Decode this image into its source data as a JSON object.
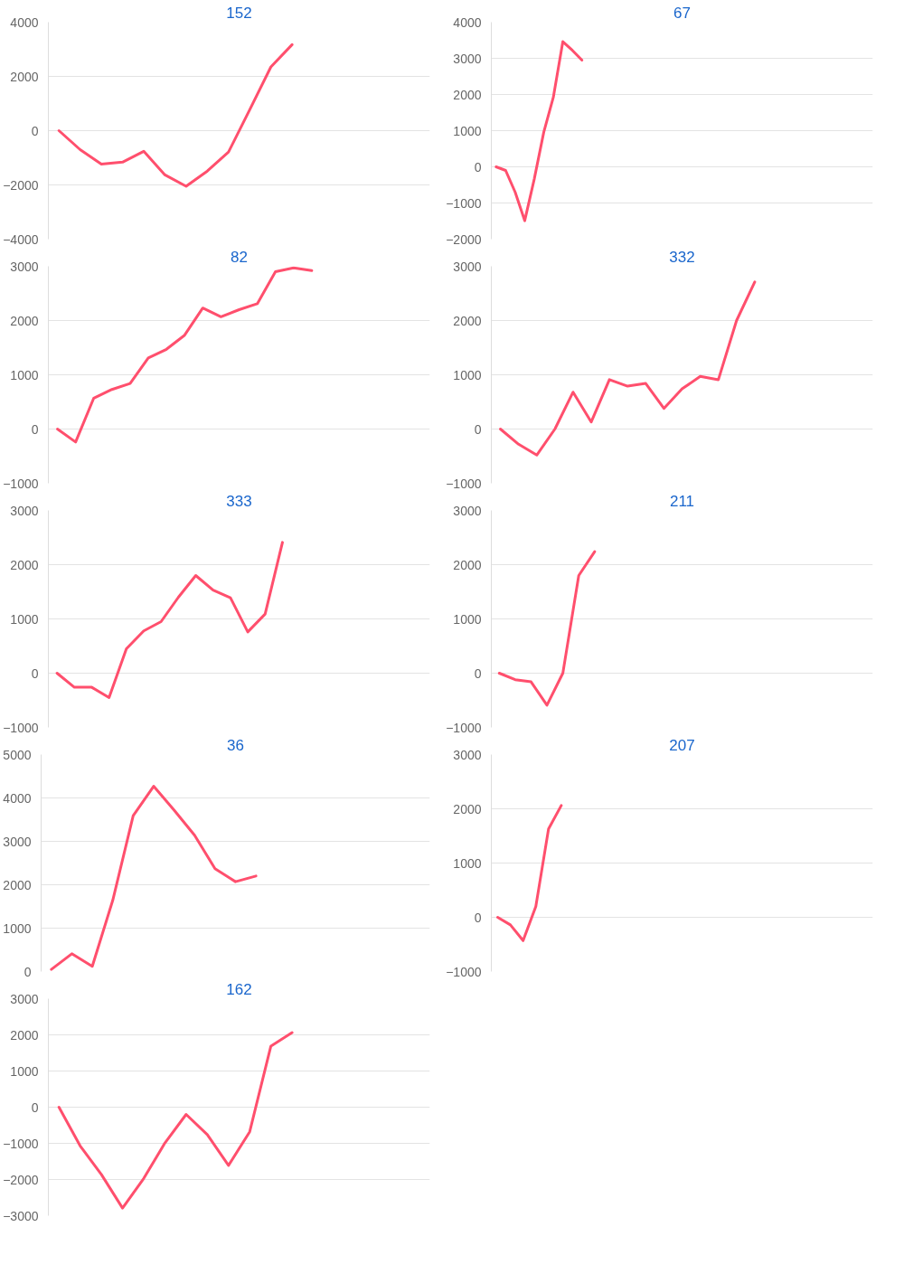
{
  "chart_data": [
    {
      "type": "line",
      "title": "152",
      "categories": [
        null,
        null,
        null,
        null,
        null,
        null,
        null,
        null,
        null,
        null,
        null,
        null,
        null,
        null,
        null,
        null,
        null,
        null
      ],
      "series": [
        {
          "color": "#ff4f6d",
          "values": [
            0,
            -700,
            -1230,
            -1160,
            -760,
            -1630,
            -2050,
            -1490,
            -790,
            770,
            2350,
            3170,
            null,
            null,
            null,
            null,
            null,
            null
          ]
        }
      ],
      "ylim": [
        -4000,
        4000
      ],
      "yticks": [
        -4000,
        -2000,
        0,
        2000,
        4000
      ],
      "grid": "y",
      "tick_labels": "y"
    },
    {
      "type": "line",
      "title": "67",
      "categories": [
        null,
        null,
        null,
        null,
        null,
        null,
        null,
        null,
        null,
        null,
        null,
        null,
        null,
        null,
        null,
        null,
        null,
        null,
        null,
        null,
        null,
        null,
        null,
        null,
        null,
        null,
        null,
        null,
        null,
        null,
        null,
        null,
        null,
        null,
        null,
        null,
        null,
        null,
        null,
        null
      ],
      "series": [
        {
          "color": "#ff4f6d",
          "values": [
            0,
            -100,
            -700,
            -1490,
            -340,
            960,
            1920,
            3460,
            3220,
            2950,
            null,
            null,
            null,
            null,
            null,
            null,
            null,
            null,
            null,
            null,
            null,
            null,
            null,
            null,
            null,
            null,
            null,
            null,
            null,
            null,
            null,
            null,
            null,
            null,
            null,
            null,
            null,
            null,
            null,
            null
          ]
        }
      ],
      "ylim": [
        -2000,
        4000
      ],
      "yticks": [
        -2000,
        -1000,
        0,
        1000,
        2000,
        3000,
        4000
      ],
      "grid": "y",
      "tick_labels": "y"
    },
    {
      "type": "line",
      "title": "82",
      "categories": [
        null,
        null,
        null,
        null,
        null,
        null,
        null,
        null,
        null,
        null,
        null,
        null,
        null,
        null,
        null,
        null,
        null,
        null,
        null,
        null,
        null
      ],
      "series": [
        {
          "color": "#ff4f6d",
          "values": [
            0,
            -240,
            570,
            730,
            840,
            1310,
            1470,
            1730,
            2230,
            2070,
            2200,
            2310,
            2900,
            2970,
            2920,
            null,
            null,
            null,
            null,
            null,
            null
          ]
        }
      ],
      "ylim": [
        -1000,
        3000
      ],
      "yticks": [
        -1000,
        0,
        1000,
        2000,
        3000
      ],
      "grid": "y",
      "tick_labels": "y"
    },
    {
      "type": "line",
      "title": "332",
      "categories": [
        null,
        null,
        null,
        null,
        null,
        null,
        null,
        null,
        null,
        null,
        null,
        null,
        null,
        null,
        null,
        null,
        null,
        null,
        null,
        null,
        null
      ],
      "series": [
        {
          "color": "#ff4f6d",
          "values": [
            0,
            -280,
            -480,
            0,
            680,
            130,
            910,
            790,
            840,
            380,
            740,
            970,
            910,
            2000,
            2710,
            null,
            null,
            null,
            null,
            null,
            null
          ]
        }
      ],
      "ylim": [
        -1000,
        3000
      ],
      "yticks": [
        -1000,
        0,
        1000,
        2000,
        3000
      ],
      "grid": "y",
      "tick_labels": "y"
    },
    {
      "type": "line",
      "title": "333",
      "categories": [
        null,
        null,
        null,
        null,
        null,
        null,
        null,
        null,
        null,
        null,
        null,
        null,
        null,
        null,
        null,
        null,
        null,
        null,
        null,
        null,
        null,
        null
      ],
      "series": [
        {
          "color": "#ff4f6d",
          "values": [
            0,
            -260,
            -260,
            -450,
            450,
            780,
            950,
            1400,
            1800,
            1530,
            1390,
            760,
            1090,
            2410,
            null,
            null,
            null,
            null,
            null,
            null,
            null,
            null
          ]
        }
      ],
      "ylim": [
        -1000,
        3000
      ],
      "yticks": [
        -1000,
        0,
        1000,
        2000,
        3000
      ],
      "grid": "y",
      "tick_labels": "y"
    },
    {
      "type": "line",
      "title": "211",
      "categories": [
        null,
        null,
        null,
        null,
        null,
        null,
        null,
        null,
        null,
        null,
        null,
        null,
        null,
        null,
        null,
        null,
        null,
        null,
        null,
        null,
        null,
        null,
        null,
        null
      ],
      "series": [
        {
          "color": "#ff4f6d",
          "values": [
            0,
            -120,
            -160,
            -590,
            0,
            1800,
            2240,
            null,
            null,
            null,
            null,
            null,
            null,
            null,
            null,
            null,
            null,
            null,
            null,
            null,
            null,
            null,
            null,
            null
          ]
        }
      ],
      "ylim": [
        -1000,
        3000
      ],
      "yticks": [
        -1000,
        0,
        1000,
        2000,
        3000
      ],
      "grid": "y",
      "tick_labels": "y"
    },
    {
      "type": "line",
      "title": "36",
      "categories": [
        null,
        null,
        null,
        null,
        null,
        null,
        null,
        null,
        null,
        null,
        null,
        null,
        null,
        null,
        null,
        null,
        null,
        null,
        null
      ],
      "series": [
        {
          "color": "#ff4f6d",
          "values": [
            50,
            410,
            120,
            1640,
            3590,
            4270,
            3720,
            3140,
            2370,
            2070,
            2200,
            null,
            null,
            null,
            null,
            null,
            null,
            null,
            null
          ]
        }
      ],
      "ylim": [
        0,
        5000
      ],
      "yticks": [
        0,
        1000,
        2000,
        3000,
        4000,
        5000
      ],
      "grid": "y",
      "tick_labels": "y"
    },
    {
      "type": "line",
      "title": "207",
      "categories": [
        null,
        null,
        null,
        null,
        null,
        null,
        null,
        null,
        null,
        null,
        null,
        null,
        null,
        null,
        null,
        null,
        null,
        null,
        null,
        null,
        null,
        null,
        null,
        null,
        null,
        null,
        null,
        null,
        null,
        null
      ],
      "series": [
        {
          "color": "#ff4f6d",
          "values": [
            0,
            -140,
            -430,
            200,
            1630,
            2060,
            null,
            null,
            null,
            null,
            null,
            null,
            null,
            null,
            null,
            null,
            null,
            null,
            null,
            null,
            null,
            null,
            null,
            null,
            null,
            null,
            null,
            null,
            null,
            null
          ]
        }
      ],
      "ylim": [
        -1000,
        3000
      ],
      "yticks": [
        -1000,
        0,
        1000,
        2000,
        3000
      ],
      "grid": "y",
      "tick_labels": "y"
    },
    {
      "type": "line",
      "title": "162",
      "categories": [
        null,
        null,
        null,
        null,
        null,
        null,
        null,
        null,
        null,
        null,
        null,
        null,
        null,
        null,
        null,
        null,
        null,
        null
      ],
      "series": [
        {
          "color": "#ff4f6d",
          "values": [
            0,
            -1070,
            -1860,
            -2790,
            -1970,
            -990,
            -200,
            -760,
            -1610,
            -680,
            1690,
            2060,
            null,
            null,
            null,
            null,
            null,
            null
          ]
        }
      ],
      "ylim": [
        -3000,
        3000
      ],
      "yticks": [
        -3000,
        -2000,
        -1000,
        0,
        1000,
        2000,
        3000
      ],
      "grid": "y",
      "tick_labels": "y"
    }
  ]
}
